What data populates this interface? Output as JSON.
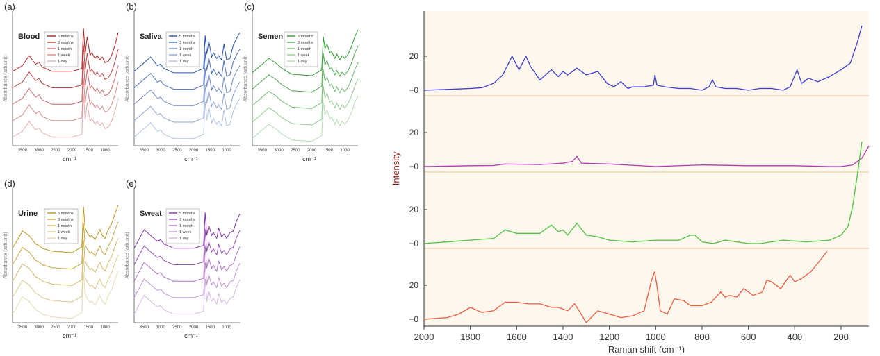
{
  "chart_data": [
    {
      "type": "line",
      "panel": "(a)",
      "sample": "Blood",
      "color": "#b02020",
      "ylabel": "Absorbance (arb.unit)",
      "xlabel": "cm⁻¹",
      "xticks": [
        3500,
        3000,
        2500,
        2000,
        1500,
        1000
      ],
      "xlim": [
        3800,
        600
      ],
      "ylim": [
        0,
        1
      ],
      "series": [
        {
          "name": "5 months",
          "offset": 0.56
        },
        {
          "name": "3 months",
          "offset": 0.42
        },
        {
          "name": "1 month",
          "offset": 0.28
        },
        {
          "name": "1 week",
          "offset": 0.14
        },
        {
          "name": "1 day",
          "offset": 0.0
        }
      ],
      "x": [
        3800,
        3500,
        3300,
        3100,
        3000,
        2900,
        2600,
        2000,
        1700,
        1650,
        1600,
        1540,
        1450,
        1400,
        1300,
        1240,
        1150,
        1080,
        1000,
        900,
        800,
        700,
        600
      ],
      "profile": [
        0.12,
        0.2,
        0.34,
        0.22,
        0.25,
        0.18,
        0.12,
        0.12,
        0.16,
        0.72,
        0.36,
        0.6,
        0.34,
        0.38,
        0.3,
        0.34,
        0.28,
        0.32,
        0.24,
        0.26,
        0.34,
        0.48,
        0.66
      ]
    },
    {
      "type": "line",
      "panel": "(b)",
      "sample": "Saliva",
      "color": "#2850b0",
      "ylabel": "Absorbance (arb.unit)",
      "xlabel": "cm⁻¹",
      "xticks": [
        3500,
        3000,
        2500,
        2000,
        1500,
        1000
      ],
      "xlim": [
        3800,
        600
      ],
      "ylim": [
        0,
        1
      ],
      "series": [
        {
          "name": "5 months",
          "offset": 0.56
        },
        {
          "name": "3 months",
          "offset": 0.42
        },
        {
          "name": "1 month",
          "offset": 0.28
        },
        {
          "name": "1 week",
          "offset": 0.14
        },
        {
          "name": "1 day",
          "offset": 0.0
        }
      ],
      "x": [
        3800,
        3500,
        3300,
        3100,
        3000,
        2900,
        2600,
        2000,
        1700,
        1650,
        1600,
        1540,
        1450,
        1400,
        1300,
        1240,
        1150,
        1080,
        1000,
        900,
        800,
        700,
        600
      ],
      "profile": [
        0.12,
        0.24,
        0.32,
        0.2,
        0.22,
        0.16,
        0.1,
        0.1,
        0.16,
        0.62,
        0.36,
        0.54,
        0.32,
        0.38,
        0.3,
        0.34,
        0.28,
        0.5,
        0.28,
        0.3,
        0.48,
        0.58,
        0.66
      ]
    },
    {
      "type": "line",
      "panel": "(c)",
      "sample": "Semen",
      "color": "#2e9a2e",
      "ylabel": "Absorbance (arb.unit)",
      "xlabel": "cm⁻¹",
      "xticks": [
        3500,
        3000,
        2500,
        2000,
        1500,
        1000
      ],
      "xlim": [
        3800,
        600
      ],
      "ylim": [
        0,
        1
      ],
      "series": [
        {
          "name": "5 months",
          "offset": 0.56
        },
        {
          "name": "3 months",
          "offset": 0.42
        },
        {
          "name": "1 month",
          "offset": 0.28
        },
        {
          "name": "1 week",
          "offset": 0.14
        },
        {
          "name": "1 day",
          "offset": 0.0
        }
      ],
      "x": [
        3800,
        3500,
        3300,
        3100,
        3000,
        2900,
        2600,
        2000,
        1700,
        1650,
        1600,
        1540,
        1450,
        1400,
        1300,
        1240,
        1150,
        1080,
        1000,
        900,
        800,
        700,
        600
      ],
      "profile": [
        0.1,
        0.22,
        0.3,
        0.24,
        0.2,
        0.16,
        0.08,
        0.06,
        0.14,
        0.6,
        0.44,
        0.5,
        0.38,
        0.4,
        0.3,
        0.36,
        0.28,
        0.34,
        0.3,
        0.36,
        0.46,
        0.6,
        0.7
      ]
    },
    {
      "type": "line",
      "panel": "(d)",
      "sample": "Urine",
      "color": "#b8961e",
      "ylabel": "Absorbance (arb.unit)",
      "xlabel": "cm⁻¹",
      "xticks": [
        3500,
        3000,
        2500,
        2000,
        1500,
        1000
      ],
      "xlim": [
        3800,
        600
      ],
      "ylim": [
        0,
        1
      ],
      "series": [
        {
          "name": "5 months",
          "offset": 0.56
        },
        {
          "name": "3 months",
          "offset": 0.42
        },
        {
          "name": "1 month",
          "offset": 0.28
        },
        {
          "name": "1 week",
          "offset": 0.14
        },
        {
          "name": "1 day",
          "offset": 0.0
        }
      ],
      "x": [
        3800,
        3500,
        3300,
        3100,
        3000,
        2900,
        2600,
        2000,
        1700,
        1650,
        1600,
        1540,
        1450,
        1400,
        1300,
        1240,
        1150,
        1080,
        1000,
        900,
        800,
        700,
        600
      ],
      "profile": [
        0.12,
        0.36,
        0.3,
        0.18,
        0.16,
        0.12,
        0.08,
        0.06,
        0.14,
        0.7,
        0.4,
        0.34,
        0.28,
        0.3,
        0.24,
        0.3,
        0.38,
        0.3,
        0.26,
        0.38,
        0.46,
        0.6,
        0.72
      ]
    },
    {
      "type": "line",
      "panel": "(e)",
      "sample": "Sweat",
      "color": "#8030a8",
      "ylabel": "Absorbance (arb.unit)",
      "xlabel": "cm⁻¹",
      "xticks": [
        3500,
        3000,
        2500,
        2000,
        1500,
        1000
      ],
      "xlim": [
        3800,
        600
      ],
      "ylim": [
        0,
        1
      ],
      "series": [
        {
          "name": "5 months",
          "offset": 0.56
        },
        {
          "name": "3 months",
          "offset": 0.42
        },
        {
          "name": "1 month",
          "offset": 0.28
        },
        {
          "name": "1 week",
          "offset": 0.14
        },
        {
          "name": "1 day",
          "offset": 0.0
        }
      ],
      "x": [
        3800,
        3500,
        3300,
        3100,
        3000,
        2900,
        2600,
        2000,
        1700,
        1650,
        1600,
        1540,
        1450,
        1400,
        1300,
        1240,
        1150,
        1080,
        1000,
        900,
        800,
        700,
        600
      ],
      "profile": [
        0.12,
        0.38,
        0.3,
        0.22,
        0.24,
        0.18,
        0.12,
        0.12,
        0.16,
        0.62,
        0.3,
        0.44,
        0.3,
        0.34,
        0.26,
        0.4,
        0.28,
        0.32,
        0.26,
        0.34,
        0.36,
        0.5,
        0.6
      ]
    },
    {
      "type": "line",
      "ylabel": "Intensity",
      "xlabel": "Raman shift (cm⁻¹)",
      "xlim": [
        2000,
        80
      ],
      "xticks": [
        2000,
        1800,
        1600,
        1400,
        1200,
        1000,
        800,
        600,
        400,
        200
      ],
      "yticks": [
        "20",
        "−0"
      ],
      "series": [
        {
          "color": "#3a3ad0",
          "x": [
            2000,
            1900,
            1800,
            1750,
            1700,
            1660,
            1620,
            1590,
            1560,
            1540,
            1500,
            1450,
            1420,
            1400,
            1380,
            1340,
            1300,
            1250,
            1210,
            1180,
            1150,
            1120,
            1100,
            1050,
            1010,
            1003,
            995,
            960,
            900,
            850,
            800,
            770,
            755,
            740,
            700,
            650,
            600,
            550,
            500,
            450,
            420,
            390,
            370,
            340,
            300,
            250,
            200,
            160,
            130,
            110
          ],
          "y": [
            0,
            0.5,
            1,
            1.5,
            4,
            9,
            20,
            12,
            20,
            14,
            6,
            12,
            8,
            11,
            9,
            13,
            9,
            11,
            4,
            2,
            5,
            1,
            2,
            2,
            3,
            9,
            3,
            2,
            1,
            1,
            0,
            2,
            6,
            2,
            1,
            1,
            0,
            1,
            1,
            0,
            2,
            12,
            4,
            7,
            5,
            8,
            12,
            16,
            28,
            38
          ]
        },
        {
          "color": "#b03ab0",
          "x": [
            2000,
            1800,
            1700,
            1650,
            1500,
            1400,
            1360,
            1340,
            1320,
            1200,
            1000,
            800,
            600,
            400,
            250,
            200,
            150,
            110,
            80
          ],
          "y": [
            0,
            0.5,
            0.6,
            1.5,
            1.2,
            2,
            3,
            6,
            2,
            1.5,
            0,
            1,
            0.5,
            0.5,
            0,
            0,
            1,
            5,
            12
          ]
        },
        {
          "color": "#4cc23a",
          "x": [
            2000,
            1800,
            1700,
            1650,
            1600,
            1500,
            1450,
            1420,
            1400,
            1380,
            1340,
            1300,
            1250,
            1200,
            1100,
            1000,
            900,
            850,
            830,
            800,
            750,
            700,
            650,
            600,
            550,
            450,
            350,
            250,
            200,
            170,
            150,
            130,
            110
          ],
          "y": [
            0,
            2,
            3,
            8,
            6,
            6,
            11,
            7,
            8,
            5,
            12,
            5,
            4,
            2,
            1,
            2,
            2,
            5,
            5,
            1,
            0,
            2,
            1,
            0,
            0,
            2,
            1,
            2,
            5,
            10,
            22,
            40,
            60
          ]
        },
        {
          "color": "#ef5a3a",
          "x": [
            2000,
            1900,
            1850,
            1800,
            1750,
            1700,
            1650,
            1600,
            1550,
            1500,
            1450,
            1420,
            1380,
            1350,
            1330,
            1300,
            1250,
            1200,
            1150,
            1100,
            1050,
            1020,
            1005,
            995,
            980,
            950,
            920,
            880,
            850,
            800,
            760,
            720,
            700,
            680,
            650,
            620,
            580,
            540,
            520,
            500,
            460,
            420,
            400,
            370,
            330,
            300,
            260
          ],
          "y": [
            0,
            1,
            3,
            7,
            4,
            5,
            10,
            10,
            9,
            9,
            7,
            7,
            5,
            9,
            5,
            -2,
            5,
            3,
            1,
            2,
            5,
            22,
            28,
            20,
            5,
            3,
            12,
            11,
            8,
            8,
            10,
            16,
            13,
            14,
            13,
            18,
            14,
            16,
            23,
            22,
            18,
            26,
            22,
            24,
            28,
            33,
            40
          ]
        }
      ]
    }
  ]
}
